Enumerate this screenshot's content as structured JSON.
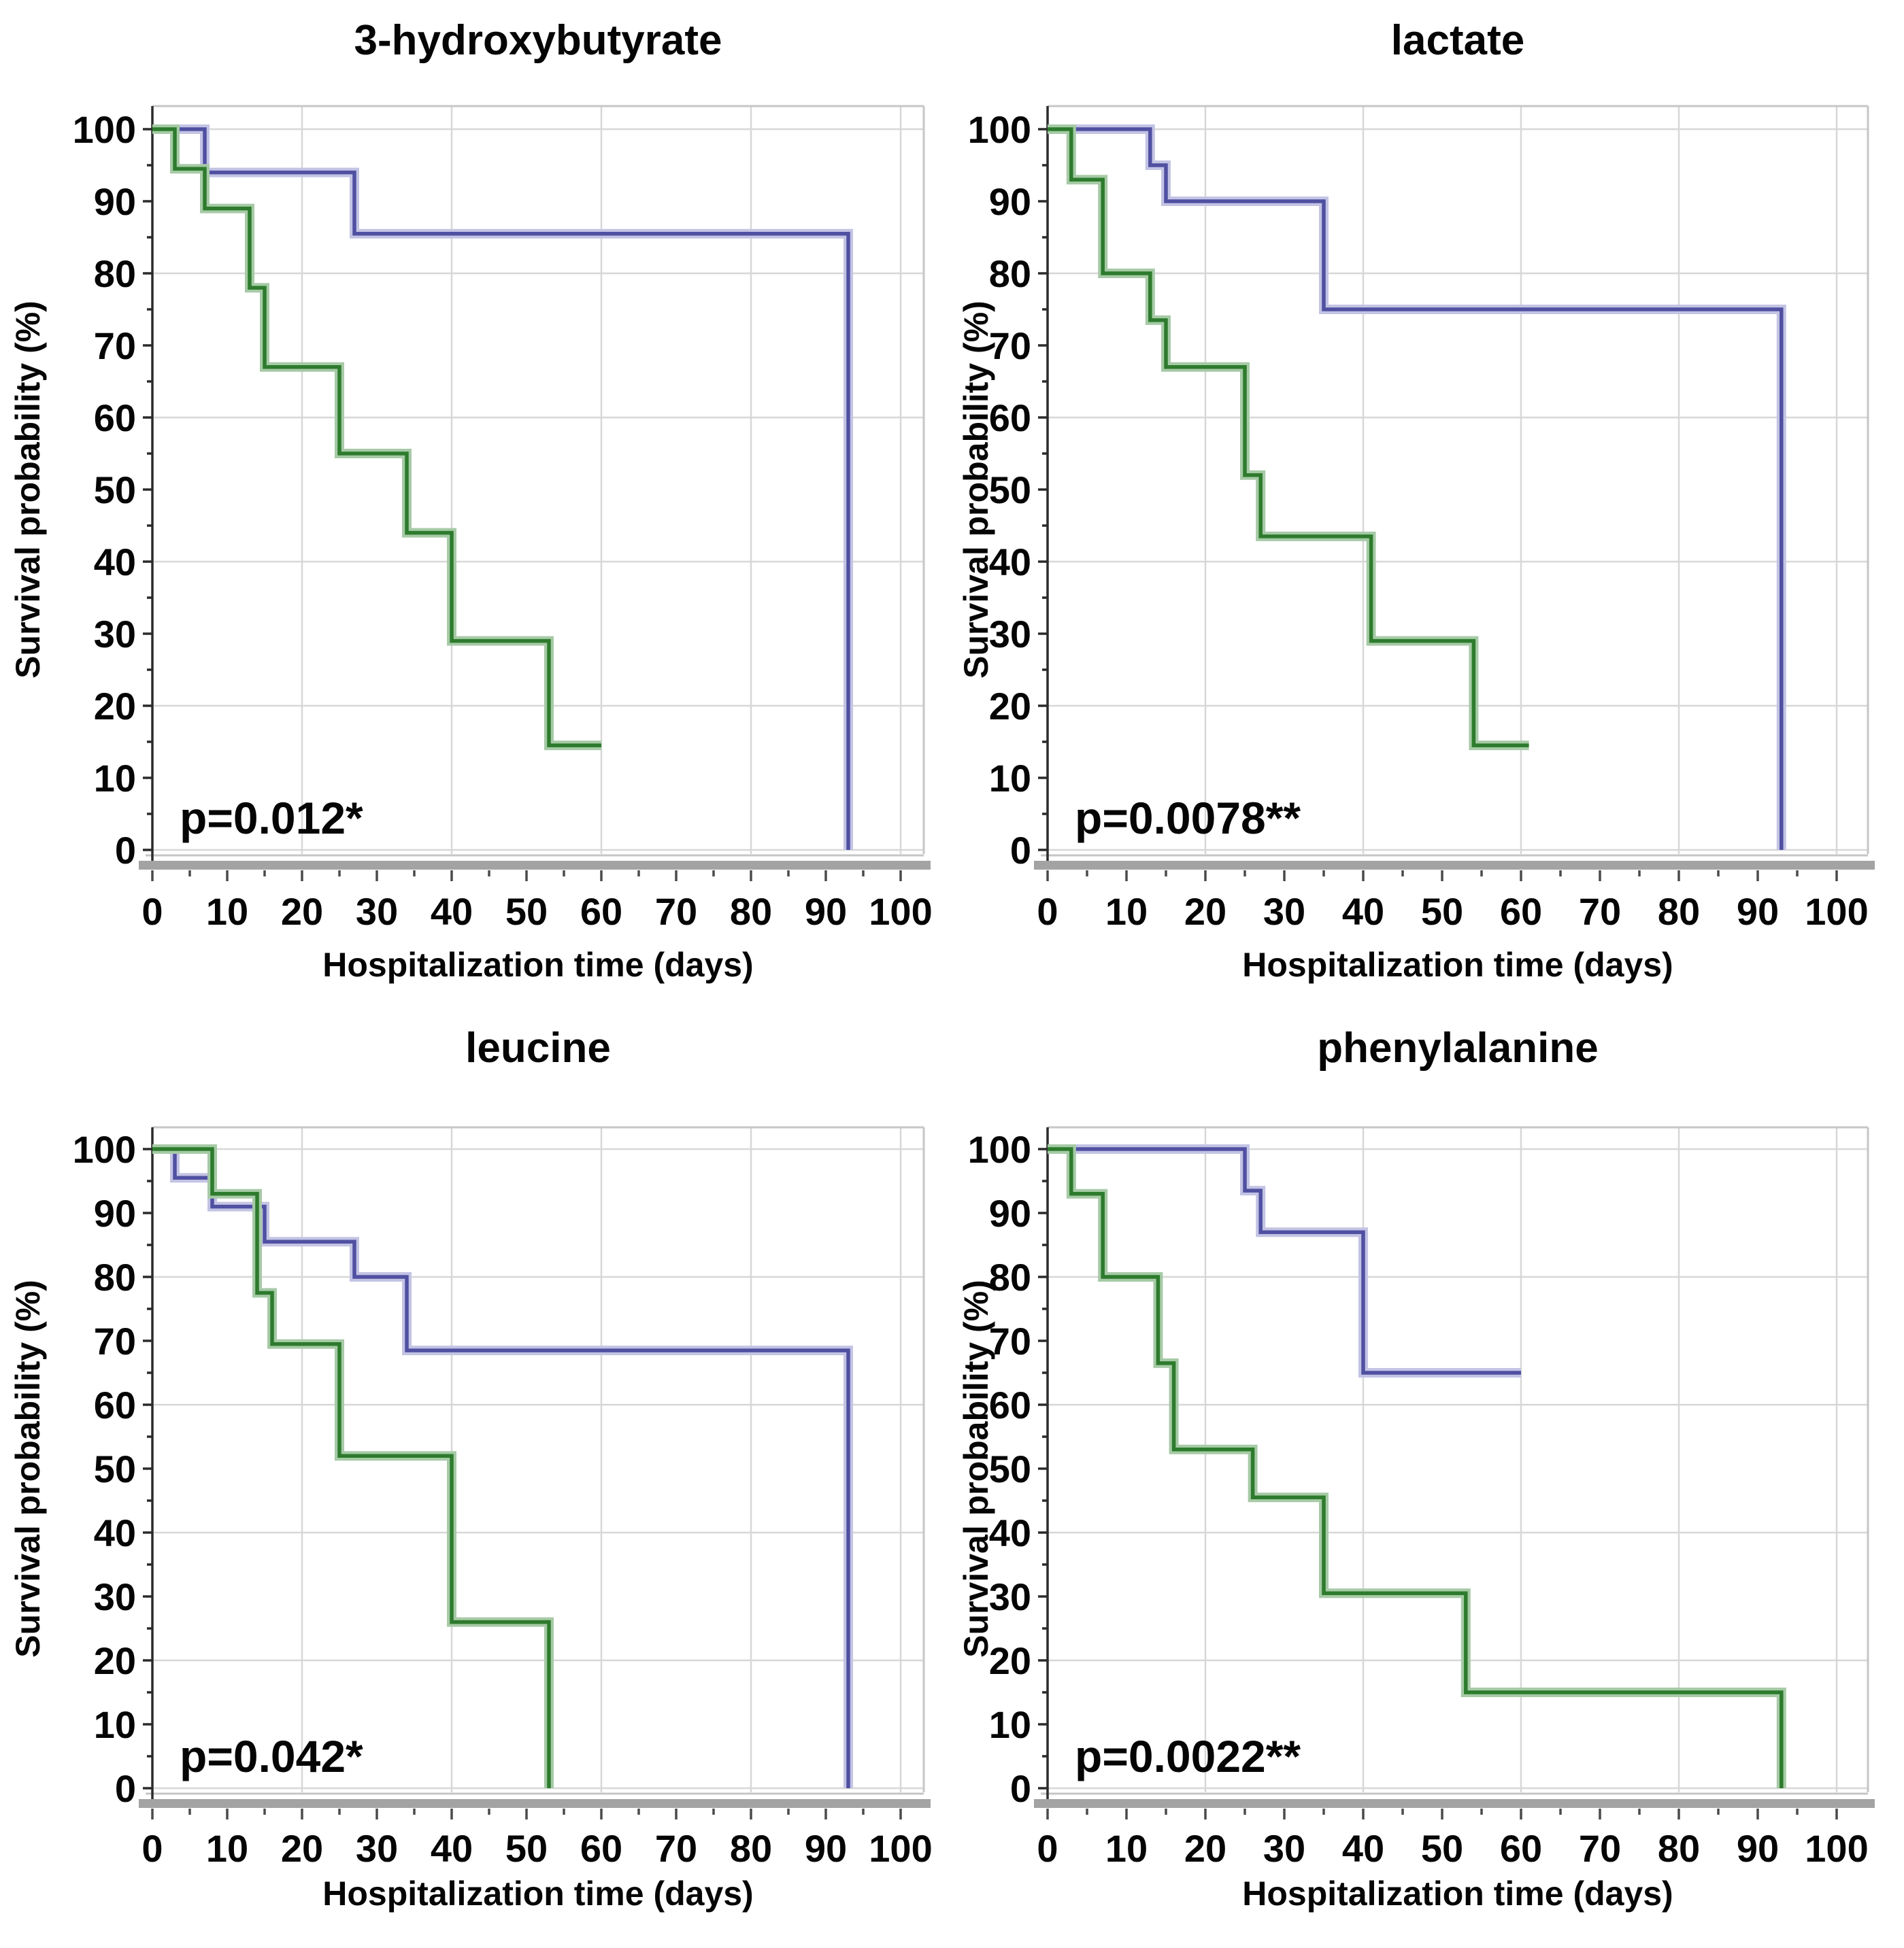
{
  "figure": {
    "background": "#ffffff",
    "description": "Kaplan-Meier survival curves, 2x2 grid"
  },
  "colors": {
    "text": "#050505",
    "grid": "#d7d7d7",
    "frame": "#c6c6c6",
    "axis_bar": "#a3a3a3",
    "axis_line": "#2b2b2b",
    "series": {
      "blue": {
        "core": "#5050a2",
        "halo": "#c3c3e4"
      },
      "green": {
        "core": "#2d7b2d",
        "halo": "#a6caa6"
      }
    }
  },
  "axes": {
    "xlabel": "Hospitalization time  (days)",
    "ylabel": "Survival probability  (%)",
    "x_ticks": [
      0,
      10,
      20,
      30,
      40,
      50,
      60,
      70,
      80,
      90,
      100
    ],
    "y_ticks": [
      0,
      10,
      20,
      30,
      40,
      50,
      60,
      70,
      80,
      90,
      100
    ],
    "xlim": [
      0,
      100
    ],
    "ylim": [
      0,
      100
    ],
    "grid_step": 20
  },
  "chart_data": [
    {
      "type": "line",
      "title": "3-hydroxybutyrate",
      "p_value_label": "p=0.012*",
      "xlabel": "Hospitalization time  (days)",
      "ylabel": "Survival probability  (%)",
      "xlim": [
        0,
        100
      ],
      "ylim": [
        0,
        100
      ],
      "grid": true,
      "legend": false,
      "series": [
        {
          "name": "blue",
          "color": "blue",
          "steps": [
            [
              0,
              100
            ],
            [
              7,
              94
            ],
            [
              27,
              85.5
            ],
            [
              93,
              0
            ]
          ]
        },
        {
          "name": "green",
          "color": "green",
          "steps": [
            [
              0,
              100
            ],
            [
              3,
              94.5
            ],
            [
              7,
              89
            ],
            [
              13,
              78
            ],
            [
              15,
              67
            ],
            [
              25,
              55
            ],
            [
              34,
              44
            ],
            [
              40,
              29
            ],
            [
              53,
              14.5
            ],
            [
              60,
              14.5
            ]
          ]
        }
      ]
    },
    {
      "type": "line",
      "title": "lactate",
      "p_value_label": "p=0.0078**",
      "xlabel": "Hospitalization time  (days)",
      "ylabel": "Survival probability  (%)",
      "xlim": [
        0,
        100
      ],
      "ylim": [
        0,
        100
      ],
      "grid": true,
      "legend": false,
      "series": [
        {
          "name": "blue",
          "color": "blue",
          "steps": [
            [
              0,
              100
            ],
            [
              13,
              95
            ],
            [
              15,
              90
            ],
            [
              35,
              75
            ],
            [
              93,
              0
            ]
          ]
        },
        {
          "name": "green",
          "color": "green",
          "steps": [
            [
              0,
              100
            ],
            [
              3,
              93
            ],
            [
              7,
              80
            ],
            [
              13,
              73.5
            ],
            [
              15,
              67
            ],
            [
              25,
              52
            ],
            [
              27,
              43.5
            ],
            [
              41,
              29
            ],
            [
              54,
              14.5
            ],
            [
              61,
              14.5
            ]
          ]
        }
      ]
    },
    {
      "type": "line",
      "title": "leucine",
      "p_value_label": "p=0.042*",
      "xlabel": "Hospitalization time  (days)",
      "ylabel": "Survival probability  (%)",
      "xlim": [
        0,
        100
      ],
      "ylim": [
        0,
        100
      ],
      "grid": true,
      "legend": false,
      "series": [
        {
          "name": "blue",
          "color": "blue",
          "steps": [
            [
              0,
              100
            ],
            [
              3,
              95.5
            ],
            [
              8,
              91
            ],
            [
              15,
              85.5
            ],
            [
              27,
              80
            ],
            [
              34,
              68.5
            ],
            [
              93,
              0
            ]
          ]
        },
        {
          "name": "green",
          "color": "green",
          "steps": [
            [
              0,
              100
            ],
            [
              8,
              93
            ],
            [
              14,
              77.5
            ],
            [
              16,
              69.5
            ],
            [
              25,
              52
            ],
            [
              40,
              26
            ],
            [
              53,
              0
            ]
          ]
        }
      ]
    },
    {
      "type": "line",
      "title": "phenylalanine",
      "p_value_label": "p=0.0022**",
      "xlabel": "Hospitalization time  (days)",
      "ylabel": "Survival probability  (%)",
      "xlim": [
        0,
        100
      ],
      "ylim": [
        0,
        100
      ],
      "grid": true,
      "legend": false,
      "series": [
        {
          "name": "blue",
          "color": "blue",
          "steps": [
            [
              0,
              100
            ],
            [
              25,
              93.5
            ],
            [
              27,
              87
            ],
            [
              40,
              65
            ],
            [
              60,
              65
            ]
          ]
        },
        {
          "name": "green",
          "color": "green",
          "steps": [
            [
              0,
              100
            ],
            [
              3,
              93
            ],
            [
              7,
              80
            ],
            [
              14,
              66.5
            ],
            [
              16,
              53
            ],
            [
              26,
              45.5
            ],
            [
              35,
              30.5
            ],
            [
              53,
              15
            ],
            [
              93,
              0
            ]
          ]
        }
      ]
    }
  ]
}
